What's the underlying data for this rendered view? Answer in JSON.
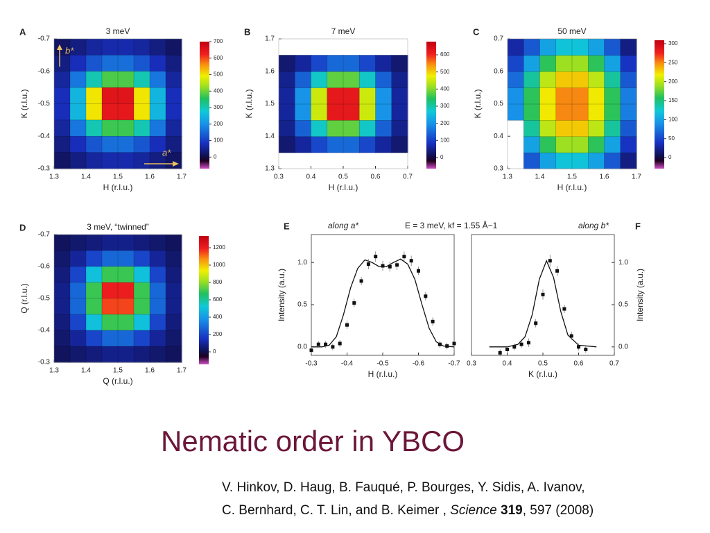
{
  "chart_data": [
    {
      "type": "heatmap",
      "panel": "A",
      "title": "3 meV",
      "xlabel": "H (r.l.u.)",
      "ylabel": "K (r.l.u.)",
      "annotations": [
        "b*",
        "a*"
      ],
      "xlim": [
        1.3,
        1.7
      ],
      "ylim": [
        -0.3,
        -0.7
      ],
      "xticks": [
        1.3,
        1.4,
        1.5,
        1.6,
        1.7
      ],
      "yticks": [
        -0.7,
        -0.6,
        -0.5,
        -0.4,
        -0.3
      ],
      "x": [
        1.325,
        1.375,
        1.425,
        1.475,
        1.525,
        1.575,
        1.625,
        1.675
      ],
      "y": [
        -0.675,
        -0.625,
        -0.575,
        -0.525,
        -0.475,
        -0.425,
        -0.375,
        -0.325
      ],
      "z": [
        [
          20,
          40,
          60,
          70,
          70,
          60,
          40,
          20
        ],
        [
          40,
          80,
          130,
          160,
          160,
          130,
          80,
          40
        ],
        [
          60,
          170,
          300,
          380,
          380,
          300,
          170,
          60
        ],
        [
          80,
          250,
          500,
          650,
          650,
          500,
          250,
          80
        ],
        [
          80,
          250,
          500,
          640,
          640,
          500,
          250,
          80
        ],
        [
          60,
          170,
          300,
          370,
          370,
          300,
          170,
          60
        ],
        [
          40,
          80,
          130,
          160,
          160,
          130,
          80,
          40
        ],
        [
          20,
          40,
          60,
          70,
          70,
          60,
          40,
          20
        ]
      ],
      "zlim": [
        -70,
        700
      ],
      "zticks": [
        0,
        100,
        200,
        300,
        400,
        500,
        600,
        700
      ]
    },
    {
      "type": "heatmap",
      "panel": "B",
      "title": "7 meV",
      "xlabel": "H (r.l.u.)",
      "ylabel": "K (r.l.u.)",
      "xlim": [
        0.3,
        0.7
      ],
      "ylim": [
        1.3,
        1.7
      ],
      "xticks": [
        0.3,
        0.4,
        0.5,
        0.6,
        0.7
      ],
      "yticks": [
        1.3,
        1.4,
        1.5,
        1.6,
        1.7
      ],
      "x": [
        0.325,
        0.375,
        0.425,
        0.475,
        0.525,
        0.575,
        0.625,
        0.675
      ],
      "y": [
        1.375,
        1.425,
        1.475,
        1.525,
        1.575,
        1.625
      ],
      "z": [
        [
          30,
          60,
          110,
          150,
          150,
          110,
          60,
          30
        ],
        [
          50,
          140,
          280,
          380,
          380,
          280,
          140,
          50
        ],
        [
          60,
          200,
          450,
          620,
          620,
          450,
          200,
          60
        ],
        [
          60,
          200,
          450,
          620,
          620,
          450,
          200,
          60
        ],
        [
          50,
          140,
          280,
          380,
          380,
          280,
          140,
          50
        ],
        [
          30,
          60,
          110,
          150,
          150,
          110,
          60,
          30
        ]
      ],
      "zlim": [
        -65,
        677
      ],
      "zticks": [
        0,
        100,
        200,
        300,
        400,
        500,
        600
      ]
    },
    {
      "type": "heatmap",
      "panel": "C",
      "title": "50 meV",
      "xlabel": "H (r.l.u.)",
      "ylabel": "K (r.l.u.)",
      "xlim": [
        1.3,
        1.7
      ],
      "ylim": [
        0.3,
        0.7
      ],
      "xticks": [
        1.3,
        1.4,
        1.5,
        1.6,
        1.7
      ],
      "yticks": [
        0.3,
        0.4,
        0.5,
        0.6,
        0.7
      ],
      "x": [
        1.325,
        1.375,
        1.425,
        1.475,
        1.525,
        1.575,
        1.625,
        1.675
      ],
      "y": [
        0.325,
        0.375,
        0.425,
        0.475,
        0.525,
        0.575,
        0.625,
        0.675
      ],
      "z": [
        [
          null,
          60,
          100,
          120,
          120,
          100,
          60,
          20
        ],
        [
          null,
          100,
          160,
          190,
          190,
          160,
          100,
          40
        ],
        [
          null,
          140,
          200,
          230,
          230,
          200,
          140,
          60
        ],
        [
          90,
          160,
          220,
          250,
          250,
          220,
          160,
          80
        ],
        [
          90,
          160,
          220,
          250,
          250,
          220,
          160,
          80
        ],
        [
          70,
          140,
          200,
          230,
          230,
          200,
          140,
          60
        ],
        [
          50,
          100,
          160,
          190,
          190,
          160,
          100,
          40
        ],
        [
          30,
          60,
          100,
          120,
          120,
          100,
          60,
          20
        ]
      ],
      "zlim": [
        -29,
        309
      ],
      "zticks": [
        0,
        50,
        100,
        150,
        200,
        250,
        300
      ]
    },
    {
      "type": "heatmap",
      "panel": "D",
      "title": "3 meV, “twinned”",
      "xlabel": "Q (r.l.u.)",
      "ylabel": "Q (r.l.u.)",
      "xlim": [
        1.3,
        1.7
      ],
      "ylim": [
        -0.3,
        -0.7
      ],
      "xticks": [
        1.3,
        1.4,
        1.5,
        1.6,
        1.7
      ],
      "yticks": [
        -0.7,
        -0.6,
        -0.5,
        -0.4,
        -0.3
      ],
      "x": [
        1.325,
        1.375,
        1.425,
        1.475,
        1.525,
        1.575,
        1.625,
        1.675
      ],
      "y": [
        -0.675,
        -0.625,
        -0.575,
        -0.525,
        -0.475,
        -0.425,
        -0.375,
        -0.325
      ],
      "z": [
        [
          20,
          40,
          60,
          80,
          80,
          60,
          40,
          20
        ],
        [
          40,
          100,
          200,
          280,
          280,
          200,
          100,
          40
        ],
        [
          60,
          200,
          500,
          700,
          700,
          500,
          200,
          60
        ],
        [
          80,
          280,
          700,
          1200,
          1200,
          700,
          280,
          80
        ],
        [
          80,
          280,
          700,
          1150,
          1150,
          700,
          280,
          80
        ],
        [
          60,
          200,
          500,
          700,
          700,
          500,
          200,
          60
        ],
        [
          40,
          100,
          200,
          280,
          280,
          200,
          100,
          40
        ],
        [
          20,
          40,
          60,
          80,
          80,
          60,
          40,
          20
        ]
      ],
      "zlim": [
        -144,
        1336
      ],
      "zticks": [
        0,
        200,
        400,
        600,
        800,
        1000,
        1200
      ]
    },
    {
      "type": "errorbar",
      "panel": "E",
      "title": "along a*",
      "subtitle": "E = 3 meV, kf = 1.55 Å−1",
      "xlabel": "H (r.l.u.)",
      "ylabel": "Intensity (a.u.)",
      "xlim": [
        -0.3,
        -0.7
      ],
      "ylim": [
        -0.1,
        1.33
      ],
      "xticks": [
        -0.3,
        -0.4,
        -0.5,
        -0.6,
        -0.7
      ],
      "yticks": [
        {
          "value": 0,
          "label": "0.0"
        },
        0.5,
        {
          "value": 1,
          "label": "1.0"
        }
      ],
      "x": [
        -0.3,
        -0.32,
        -0.34,
        -0.36,
        -0.38,
        -0.4,
        -0.42,
        -0.44,
        -0.46,
        -0.48,
        -0.5,
        -0.52,
        -0.54,
        -0.56,
        -0.58,
        -0.6,
        -0.62,
        -0.64,
        -0.66,
        -0.68,
        -0.7
      ],
      "values": [
        -0.04,
        0.03,
        0.03,
        0.0,
        0.04,
        0.26,
        0.52,
        0.78,
        0.98,
        1.07,
        0.96,
        0.95,
        0.97,
        1.07,
        1.02,
        0.9,
        0.6,
        0.3,
        0.03,
        0.01,
        0.04
      ],
      "errors": [
        0.04,
        0.04,
        0.04,
        0.04,
        0.04,
        0.05,
        0.05,
        0.05,
        0.06,
        0.06,
        0.06,
        0.06,
        0.06,
        0.06,
        0.06,
        0.05,
        0.05,
        0.05,
        0.04,
        0.04,
        0.04
      ],
      "fit": {
        "x": [
          -0.3,
          -0.33,
          -0.35,
          -0.37,
          -0.39,
          -0.41,
          -0.43,
          -0.45,
          -0.47,
          -0.49,
          -0.51,
          -0.53,
          -0.55,
          -0.57,
          -0.59,
          -0.61,
          -0.63,
          -0.65,
          -0.67,
          -0.7
        ],
        "values": [
          0.0,
          0.0,
          0.02,
          0.12,
          0.38,
          0.7,
          0.93,
          1.03,
          1.0,
          0.95,
          0.95,
          1.0,
          1.04,
          0.98,
          0.8,
          0.5,
          0.22,
          0.06,
          0.01,
          0.0
        ]
      }
    },
    {
      "type": "errorbar",
      "panel": "F",
      "title": "along b*",
      "axis": "right",
      "xlabel": "K (r.l.u.)",
      "ylabel": "Intensity (a.u.)",
      "xlim": [
        0.3,
        0.7
      ],
      "ylim": [
        -0.1,
        1.33
      ],
      "xticks": [
        0.3,
        0.4,
        0.5,
        0.6,
        0.7
      ],
      "yticks": [
        {
          "value": 0,
          "label": "0.0"
        },
        0.5,
        {
          "value": 1,
          "label": "1.0"
        }
      ],
      "x": [
        0.38,
        0.4,
        0.42,
        0.44,
        0.46,
        0.48,
        0.5,
        0.52,
        0.54,
        0.56,
        0.58,
        0.6,
        0.62
      ],
      "values": [
        -0.07,
        -0.03,
        0.0,
        0.03,
        0.05,
        0.28,
        0.62,
        1.02,
        0.9,
        0.45,
        0.13,
        0.0,
        -0.03
      ],
      "errors": [
        0.04,
        0.04,
        0.04,
        0.04,
        0.05,
        0.05,
        0.06,
        0.07,
        0.06,
        0.05,
        0.05,
        0.04,
        0.04
      ],
      "fit": {
        "x": [
          0.35,
          0.4,
          0.43,
          0.45,
          0.47,
          0.49,
          0.51,
          0.53,
          0.55,
          0.57,
          0.6,
          0.65
        ],
        "values": [
          0,
          0,
          0.03,
          0.12,
          0.38,
          0.8,
          1.02,
          0.82,
          0.42,
          0.14,
          0.02,
          0
        ]
      }
    }
  ],
  "slide": {
    "title": "Nematic order in YBCO",
    "citation": {
      "line1": "V. Hinkov, D. Haug, B. Fauqué, P. Bourges, Y. Sidis, A. Ivanov,",
      "line2": "C. Bernhard, C. T. Lin, and B. Keimer , ",
      "journal": "Science",
      "volume": "319",
      "rest": ", 597 (2008)"
    }
  }
}
